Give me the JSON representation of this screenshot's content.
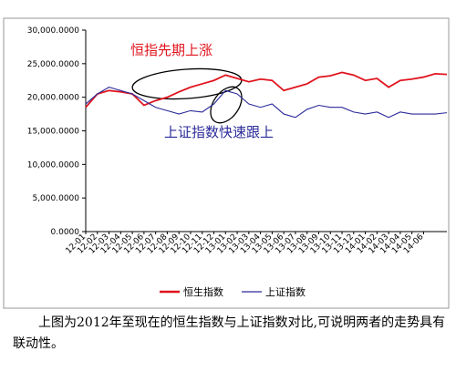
{
  "chart_data": {
    "type": "line",
    "annotations": [
      "恒指先期上涨",
      "上证指数快速跟上"
    ],
    "categories": [
      "12-01",
      "12-02",
      "12-03",
      "12-04",
      "12-05",
      "12-06",
      "12-07",
      "12-08",
      "12-09",
      "12-10",
      "12-11",
      "12-12",
      "13-01",
      "13-02",
      "13-03",
      "13-04",
      "13-05",
      "13-06",
      "13-07",
      "13-08",
      "13-09",
      "13-10",
      "13-11",
      "13-12",
      "14-01",
      "14-02",
      "14-03",
      "14-04",
      "14-05",
      "14-06",
      null,
      null
    ],
    "series": [
      {
        "name": "恒生指数",
        "color": "#e0141e",
        "values": [
          18500,
          20500,
          21000,
          20800,
          20500,
          18800,
          19500,
          20000,
          20800,
          21500,
          22000,
          22500,
          23300,
          22800,
          22300,
          22700,
          22500,
          21000,
          21500,
          22000,
          23000,
          23200,
          23700,
          23300,
          22500,
          22800,
          21500,
          22500,
          22700,
          23000,
          23500,
          23400
        ]
      },
      {
        "name": "上证指数",
        "color": "#2b2b9a",
        "values": [
          19000,
          20500,
          21500,
          21000,
          20500,
          19500,
          18500,
          18000,
          17500,
          18000,
          17800,
          19000,
          21000,
          20500,
          19000,
          18500,
          19000,
          17500,
          17000,
          18200,
          18800,
          18500,
          18500,
          17800,
          17500,
          17800,
          17000,
          17800,
          17500,
          17500,
          17500,
          17700
        ]
      }
    ],
    "ylim": [
      0,
      30000
    ],
    "yticks": [
      {
        "value": 0,
        "label": "0.0000"
      },
      {
        "value": 5000,
        "label": "5,000.0000"
      },
      {
        "value": 10000,
        "label": "10,000.0000"
      },
      {
        "value": 15000,
        "label": "15,000.0000"
      },
      {
        "value": 20000,
        "label": "20,000.0000"
      },
      {
        "value": 25000,
        "label": "25,000.0000"
      },
      {
        "value": 30000,
        "label": "30,000.0000"
      }
    ],
    "grid": false,
    "legend": "bottom"
  },
  "caption": "上图为2012年至现在的恒生指数与上证指数对比,可说明两者的走势具有联动性。"
}
